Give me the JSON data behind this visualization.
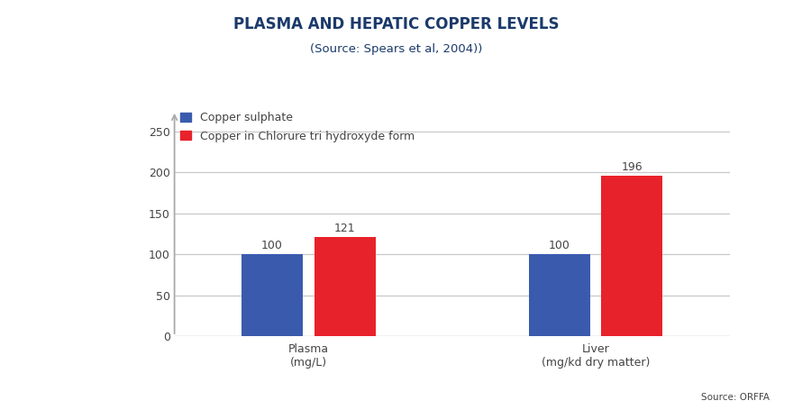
{
  "title": "PLASMA AND HEPATIC COPPER LEVELS",
  "subtitle": "(Source: Spears et al, 2004))",
  "categories": [
    "Plasma\n(mg/L)",
    "Liver\n(mg/kd dry matter)"
  ],
  "blue_values": [
    100,
    100
  ],
  "red_values": [
    121,
    196
  ],
  "blue_color": "#3A5BAD",
  "red_color": "#E8222A",
  "title_color": "#1B3A6B",
  "subtitle_color": "#1B3A6B",
  "label_color": "#444444",
  "source_text": "Source: ORFFA",
  "legend_labels": [
    "Copper sulphate",
    "Copper in Chlorure tri hydroxyde form"
  ],
  "ylim": [
    0,
    275
  ],
  "yticks": [
    0,
    50,
    100,
    150,
    200,
    250
  ],
  "grid_color": "#C8C8C8",
  "background_color": "#FFFFFF",
  "bar_width": 0.32,
  "arrow_color": "#AAAAAA"
}
